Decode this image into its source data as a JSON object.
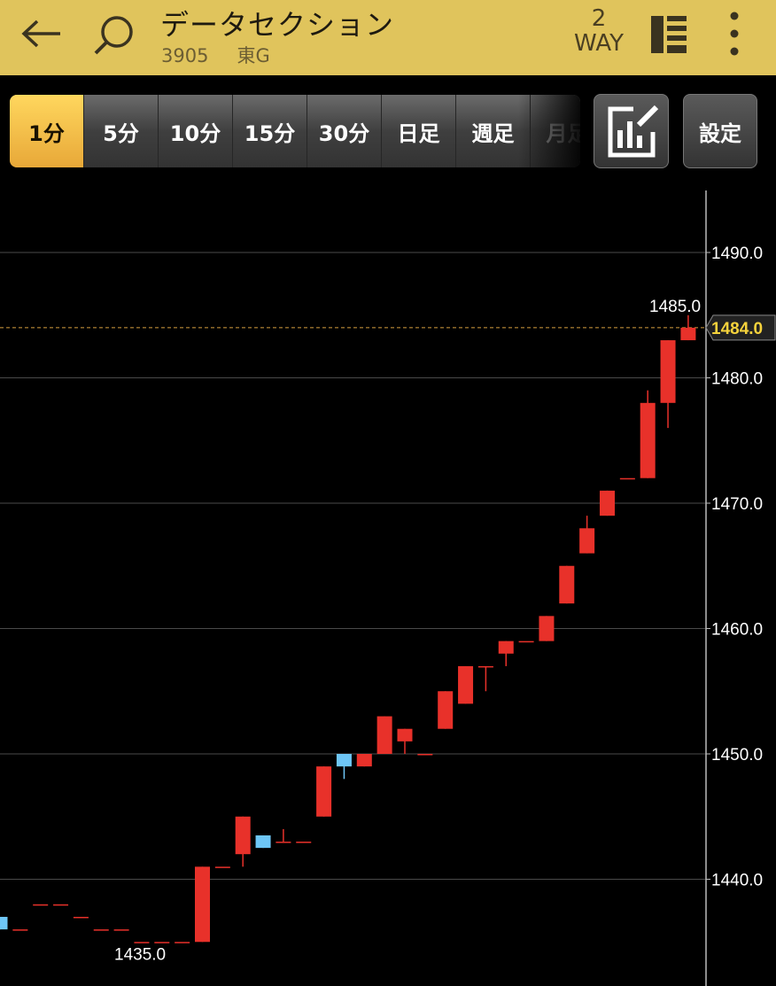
{
  "header": {
    "title": "データセクション",
    "code": "3905",
    "market": "東G",
    "way_number": "2",
    "way_label": "WAY",
    "bg_color": "#e0c45c"
  },
  "icons": {
    "back": "back-arrow-icon",
    "search": "search-icon",
    "list": "list-icon",
    "more": "more-vertical-icon",
    "tool": "chart-drawing-icon"
  },
  "tabs": [
    {
      "label": "1分",
      "active": true
    },
    {
      "label": "5分",
      "active": false
    },
    {
      "label": "10分",
      "active": false
    },
    {
      "label": "15分",
      "active": false
    },
    {
      "label": "30分",
      "active": false
    },
    {
      "label": "日足",
      "active": false
    },
    {
      "label": "週足",
      "active": false
    },
    {
      "label": "月足",
      "active": false
    }
  ],
  "settings_label": "設定",
  "chart_data": {
    "type": "candlestick",
    "interval": "1分",
    "y_ticks": [
      "1490.0",
      "1480.0",
      "1470.0",
      "1460.0",
      "1450.0",
      "1440.0"
    ],
    "y_tick_values": [
      1490,
      1480,
      1470,
      1460,
      1450,
      1440
    ],
    "current_price": 1484.0,
    "current_price_label": "1484.0",
    "high_label": "1485.0",
    "high_value": 1485.0,
    "low_label": "1435.0",
    "low_value": 1435.0,
    "up_color": "#e8312a",
    "down_color": "#6ec6f6",
    "candles": [
      {
        "open": 1437,
        "high": 1437,
        "low": 1436,
        "close": 1436
      },
      {
        "open": 1436,
        "high": 1436,
        "low": 1436,
        "close": 1436
      },
      {
        "open": 1438,
        "high": 1438,
        "low": 1438,
        "close": 1438
      },
      {
        "open": 1438,
        "high": 1438,
        "low": 1438,
        "close": 1438
      },
      {
        "open": 1437,
        "high": 1437,
        "low": 1437,
        "close": 1437
      },
      {
        "open": 1436,
        "high": 1436,
        "low": 1436,
        "close": 1436
      },
      {
        "open": 1436,
        "high": 1436,
        "low": 1436,
        "close": 1436
      },
      {
        "open": 1435,
        "high": 1435,
        "low": 1435,
        "close": 1435
      },
      {
        "open": 1435,
        "high": 1435,
        "low": 1435,
        "close": 1435
      },
      {
        "open": 1435,
        "high": 1435,
        "low": 1435,
        "close": 1435
      },
      {
        "open": 1435,
        "high": 1441,
        "low": 1435,
        "close": 1441
      },
      {
        "open": 1441,
        "high": 1441,
        "low": 1441,
        "close": 1441
      },
      {
        "open": 1442,
        "high": 1445,
        "low": 1441,
        "close": 1445
      },
      {
        "open": 1443.5,
        "high": 1443.5,
        "low": 1442.5,
        "close": 1442.5
      },
      {
        "open": 1443,
        "high": 1444,
        "low": 1443,
        "close": 1443
      },
      {
        "open": 1443,
        "high": 1443,
        "low": 1443,
        "close": 1443
      },
      {
        "open": 1445,
        "high": 1449,
        "low": 1445,
        "close": 1449
      },
      {
        "open": 1450,
        "high": 1450,
        "low": 1448,
        "close": 1449
      },
      {
        "open": 1449,
        "high": 1450,
        "low": 1449,
        "close": 1450
      },
      {
        "open": 1450,
        "high": 1453,
        "low": 1450,
        "close": 1453
      },
      {
        "open": 1451,
        "high": 1452,
        "low": 1450,
        "close": 1452
      },
      {
        "open": 1450,
        "high": 1450,
        "low": 1450,
        "close": 1450
      },
      {
        "open": 1452,
        "high": 1455,
        "low": 1452,
        "close": 1455
      },
      {
        "open": 1454,
        "high": 1457,
        "low": 1454,
        "close": 1457
      },
      {
        "open": 1457,
        "high": 1457,
        "low": 1455,
        "close": 1457
      },
      {
        "open": 1458,
        "high": 1459,
        "low": 1457,
        "close": 1459
      },
      {
        "open": 1459,
        "high": 1459,
        "low": 1459,
        "close": 1459
      },
      {
        "open": 1459,
        "high": 1461,
        "low": 1459,
        "close": 1461
      },
      {
        "open": 1462,
        "high": 1465,
        "low": 1462,
        "close": 1465
      },
      {
        "open": 1466,
        "high": 1469,
        "low": 1466,
        "close": 1468
      },
      {
        "open": 1469,
        "high": 1471,
        "low": 1469,
        "close": 1471
      },
      {
        "open": 1472,
        "high": 1472,
        "low": 1472,
        "close": 1472
      },
      {
        "open": 1472,
        "high": 1479,
        "low": 1472,
        "close": 1478
      },
      {
        "open": 1478,
        "high": 1483,
        "low": 1476,
        "close": 1483
      },
      {
        "open": 1483,
        "high": 1485,
        "low": 1483,
        "close": 1484
      }
    ]
  }
}
